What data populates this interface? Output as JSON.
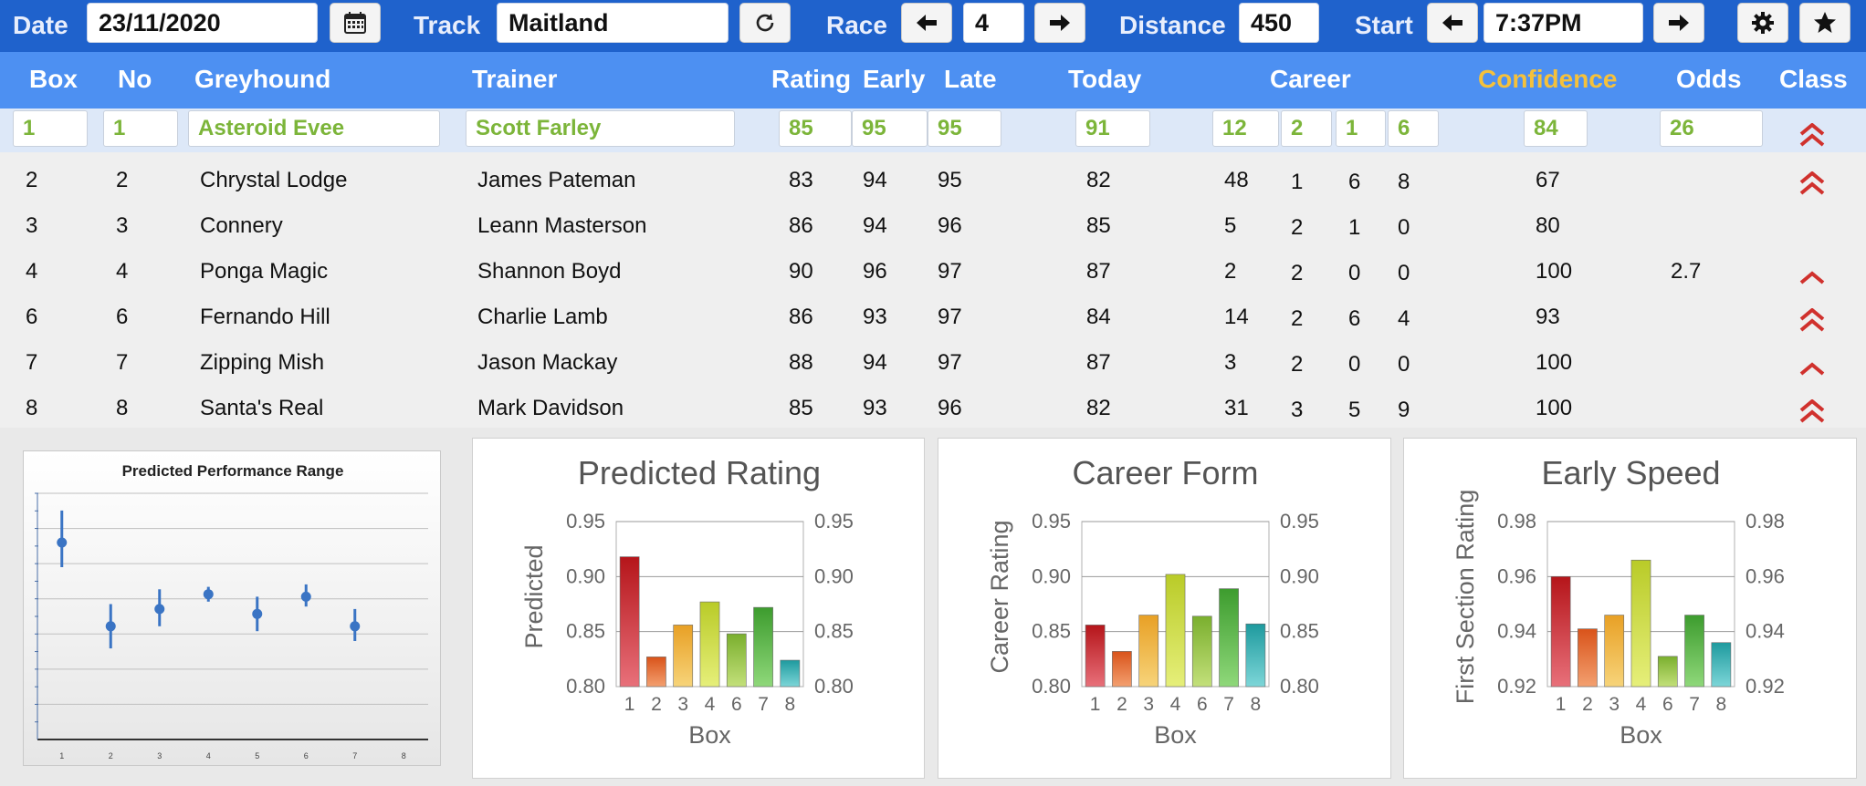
{
  "toolbar": {
    "date_label": "Date",
    "date_value": "23/11/2020",
    "track_label": "Track",
    "track_value": "Maitland",
    "race_label": "Race",
    "race_value": "4",
    "distance_label": "Distance",
    "distance_value": "450",
    "start_label": "Start",
    "start_value": "7:37PM",
    "icons": [
      "calendar-icon",
      "refresh-icon",
      "arrow-left-icon",
      "arrow-right-icon",
      "gear-icon",
      "star-icon"
    ]
  },
  "table": {
    "headers": {
      "box": "Box",
      "no": "No",
      "greyhound": "Greyhound",
      "trainer": "Trainer",
      "rating": "Rating",
      "early": "Early",
      "late": "Late",
      "today": "Today",
      "career": "Career",
      "confidence": "Confidence",
      "odds": "Odds",
      "class": "Class"
    },
    "selected_row": {
      "box": "1",
      "no": "1",
      "greyhound": "Asteroid Evee",
      "trainer": "Scott Farley",
      "rating": "85",
      "early": "95",
      "late": "95",
      "today": "91",
      "career": [
        "12",
        "2",
        "1",
        "6"
      ],
      "confidence": "84",
      "odds": "26",
      "class": "double-up"
    },
    "rows": [
      {
        "box": "2",
        "no": "2",
        "greyhound": "Chrystal Lodge",
        "trainer": "James Pateman",
        "rating": "83",
        "early": "94",
        "late": "95",
        "today": "82",
        "career": [
          "48",
          "1",
          "6",
          "8"
        ],
        "confidence": "67",
        "odds": "",
        "class": "double-up"
      },
      {
        "box": "3",
        "no": "3",
        "greyhound": "Connery",
        "trainer": "Leann Masterson",
        "rating": "86",
        "early": "94",
        "late": "96",
        "today": "85",
        "career": [
          "5",
          "2",
          "1",
          "0"
        ],
        "confidence": "80",
        "odds": "",
        "class": "none"
      },
      {
        "box": "4",
        "no": "4",
        "greyhound": "Ponga Magic",
        "trainer": "Shannon Boyd",
        "rating": "90",
        "early": "96",
        "late": "97",
        "today": "87",
        "career": [
          "2",
          "2",
          "0",
          "0"
        ],
        "confidence": "100",
        "odds": "2.7",
        "class": "single-up"
      },
      {
        "box": "6",
        "no": "6",
        "greyhound": "Fernando Hill",
        "trainer": "Charlie Lamb",
        "rating": "86",
        "early": "93",
        "late": "97",
        "today": "84",
        "career": [
          "14",
          "2",
          "6",
          "4"
        ],
        "confidence": "93",
        "odds": "",
        "class": "double-up"
      },
      {
        "box": "7",
        "no": "7",
        "greyhound": "Zipping Mish",
        "trainer": "Jason Mackay",
        "rating": "88",
        "early": "94",
        "late": "97",
        "today": "87",
        "career": [
          "3",
          "2",
          "0",
          "0"
        ],
        "confidence": "100",
        "odds": "",
        "class": "single-up"
      },
      {
        "box": "8",
        "no": "8",
        "greyhound": "Santa's Real",
        "trainer": "Mark Davidson",
        "rating": "85",
        "early": "93",
        "late": "96",
        "today": "82",
        "career": [
          "31",
          "3",
          "5",
          "9"
        ],
        "confidence": "100",
        "odds": "",
        "class": "double-up"
      }
    ]
  },
  "colors": {
    "toolbar_bg": "#1f62cc",
    "header_bg": "#4d90f2",
    "selected_text": "#7cb53a",
    "confidence_header": "#f5c13b",
    "chevron": "#d0312d"
  },
  "chart_data": [
    {
      "type": "scatter",
      "title": "Predicted Performance Range",
      "xlabel": "",
      "ylabel": "",
      "categories": [
        "1",
        "2",
        "3",
        "4",
        "5",
        "6",
        "7",
        "8"
      ],
      "points": [
        {
          "x": "1",
          "y": 0.8,
          "low": 0.7,
          "high": 0.93
        },
        {
          "x": "2",
          "y": 0.46,
          "low": 0.37,
          "high": 0.55
        },
        {
          "x": "3",
          "y": 0.53,
          "low": 0.46,
          "high": 0.61
        },
        {
          "x": "4",
          "y": 0.59,
          "low": 0.56,
          "high": 0.62
        },
        {
          "x": "5",
          "y": 0.51,
          "low": 0.44,
          "high": 0.58
        },
        {
          "x": "6",
          "y": 0.58,
          "low": 0.54,
          "high": 0.63
        },
        {
          "x": "7",
          "y": 0.46,
          "low": 0.4,
          "high": 0.53
        }
      ],
      "ylim": [
        0,
        1
      ],
      "grid": true,
      "marker_color": "#3a74c4"
    },
    {
      "type": "bar",
      "title": "Predicted Rating",
      "xlabel": "Box",
      "ylabel": "Predicted",
      "categories": [
        "1",
        "2",
        "3",
        "4",
        "6",
        "7",
        "8"
      ],
      "values": [
        0.918,
        0.827,
        0.856,
        0.877,
        0.848,
        0.872,
        0.824
      ],
      "ylim": [
        0.8,
        0.95
      ],
      "yticks": [
        "0.80",
        "0.85",
        "0.90",
        "0.95"
      ],
      "secondary_axis": true,
      "grid": true
    },
    {
      "type": "bar",
      "title": "Career Form",
      "xlabel": "Box",
      "ylabel": "Career Rating",
      "categories": [
        "1",
        "2",
        "3",
        "4",
        "6",
        "7",
        "8"
      ],
      "values": [
        0.856,
        0.832,
        0.865,
        0.902,
        0.864,
        0.889,
        0.857
      ],
      "ylim": [
        0.8,
        0.95
      ],
      "yticks": [
        "0.80",
        "0.85",
        "0.90",
        "0.95"
      ],
      "secondary_axis": true,
      "grid": true
    },
    {
      "type": "bar",
      "title": "Early Speed",
      "xlabel": "Box",
      "ylabel": "First Section Rating",
      "categories": [
        "1",
        "2",
        "3",
        "4",
        "6",
        "7",
        "8"
      ],
      "values": [
        0.96,
        0.941,
        0.946,
        0.966,
        0.931,
        0.946,
        0.936
      ],
      "ylim": [
        0.92,
        0.98
      ],
      "yticks": [
        "0.92",
        "0.94",
        "0.96",
        "0.98"
      ],
      "secondary_axis": true,
      "grid": true
    }
  ]
}
